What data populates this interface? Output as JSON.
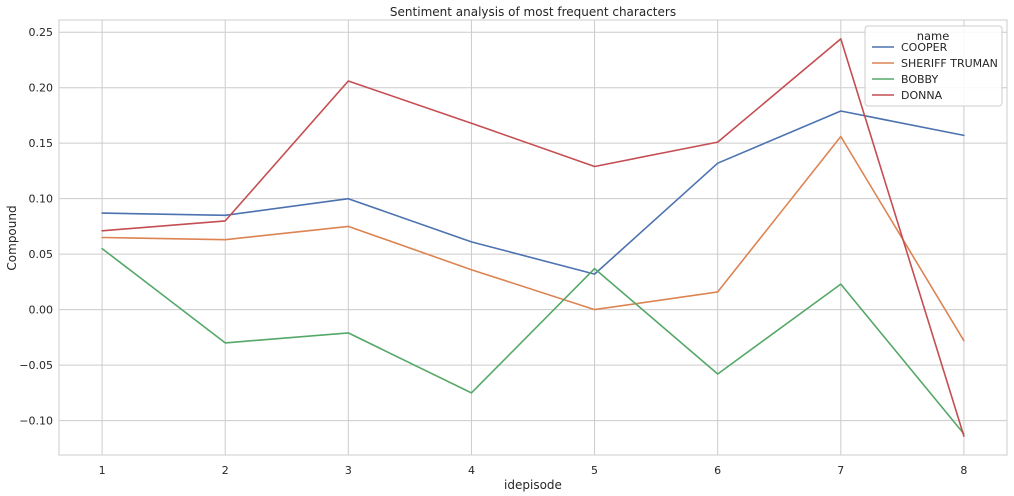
{
  "chart_data": {
    "type": "line",
    "title": "Sentiment analysis of most frequent characters",
    "xlabel": "idepisode",
    "ylabel": "Compound",
    "x": [
      1,
      2,
      3,
      4,
      5,
      6,
      7,
      8
    ],
    "xlim": [
      0.65,
      8.35
    ],
    "ylim": [
      -0.131,
      0.261
    ],
    "yticks": [
      -0.1,
      -0.05,
      0.0,
      0.05,
      0.1,
      0.15,
      0.2,
      0.25
    ],
    "ytick_labels": [
      "−0.10",
      "−0.05",
      "0.00",
      "0.05",
      "0.10",
      "0.15",
      "0.20",
      "0.25"
    ],
    "grid": true,
    "legend": {
      "title": "name",
      "placement": "top-right"
    },
    "series": [
      {
        "name": "COOPER",
        "color": "#4c72b0",
        "values": [
          0.087,
          0.085,
          0.1,
          0.061,
          0.032,
          0.132,
          0.179,
          0.157
        ]
      },
      {
        "name": "SHERIFF TRUMAN",
        "color": "#dd8452",
        "values": [
          0.065,
          0.063,
          0.075,
          0.036,
          0.0,
          0.016,
          0.156,
          -0.028
        ]
      },
      {
        "name": "BOBBY",
        "color": "#55a868",
        "values": [
          0.055,
          -0.03,
          -0.021,
          -0.075,
          0.037,
          -0.058,
          0.023,
          -0.112
        ]
      },
      {
        "name": "DONNA",
        "color": "#c44e52",
        "values": [
          0.071,
          0.08,
          0.206,
          0.168,
          0.129,
          0.151,
          0.244,
          -0.114
        ]
      }
    ]
  }
}
